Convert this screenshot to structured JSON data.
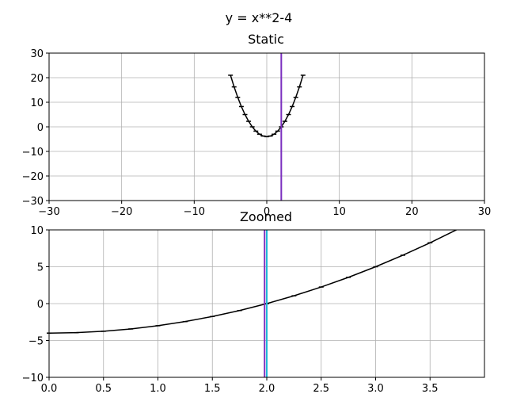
{
  "suptitle": "y = x**2-4",
  "chart_data": [
    {
      "type": "line",
      "title": "Static",
      "function": "x**2-4",
      "x": [
        -5,
        -4.5,
        -4,
        -3.5,
        -3,
        -2.5,
        -2,
        -1.5,
        -1,
        -0.5,
        0,
        0.5,
        1,
        1.5,
        2,
        2.5,
        3,
        3.5,
        4,
        4.5,
        5
      ],
      "y": [
        21,
        16.25,
        12,
        8.25,
        5,
        2.25,
        0,
        -1.75,
        -3,
        -3.75,
        -4,
        -3.75,
        -3,
        -1.75,
        0,
        2.25,
        5,
        8.25,
        12,
        16.25,
        21
      ],
      "xlim": [
        -30,
        30
      ],
      "ylim": [
        -30,
        30
      ],
      "xticks": [
        -30,
        -20,
        -10,
        0,
        10,
        20,
        30
      ],
      "yticks": [
        -30,
        -20,
        -10,
        0,
        10,
        20,
        30
      ],
      "xtick_labels": [
        "−30",
        "−20",
        "−10",
        "0",
        "10",
        "20",
        "30"
      ],
      "ytick_labels": [
        "−30",
        "−20",
        "−10",
        "0",
        "10",
        "20",
        "30"
      ],
      "vlines": [
        {
          "x": 2,
          "color": "#7b2fbf"
        }
      ],
      "grid": true,
      "line_color": "#000000"
    },
    {
      "type": "line",
      "title": "Zoomed",
      "function": "x**2-4",
      "x": [
        0,
        0.25,
        0.5,
        0.75,
        1,
        1.25,
        1.5,
        1.75,
        2,
        2.25,
        2.5,
        2.75,
        3,
        3.25,
        3.5,
        3.75
      ],
      "y": [
        -4,
        -3.9375,
        -3.75,
        -3.4375,
        -3,
        -2.4375,
        -1.75,
        -0.9375,
        0,
        1.0625,
        2.25,
        3.5625,
        5,
        6.5625,
        8.25,
        10.0625
      ],
      "xlim": [
        0,
        4
      ],
      "ylim": [
        -10,
        10
      ],
      "xticks": [
        0,
        0.5,
        1,
        1.5,
        2,
        2.5,
        3,
        3.5
      ],
      "yticks": [
        -10,
        -5,
        0,
        5,
        10
      ],
      "xtick_labels": [
        "0.0",
        "0.5",
        "1.0",
        "1.5",
        "2.0",
        "2.5",
        "3.0",
        "3.5"
      ],
      "ytick_labels": [
        "−10",
        "−5",
        "0",
        "5",
        "10"
      ],
      "vlines": [
        {
          "x": 1.98,
          "color": "#7b2fbf"
        },
        {
          "x": 2.0,
          "color": "#1fb8d6"
        }
      ],
      "grid": true,
      "line_color": "#000000"
    }
  ]
}
